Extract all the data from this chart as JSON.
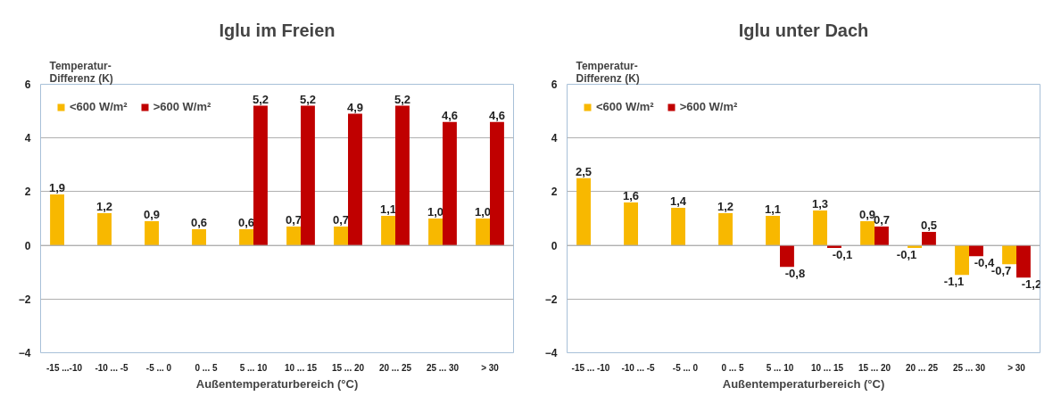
{
  "chart_data": [
    {
      "type": "bar",
      "title": "Iglu im Freien",
      "ylabel": "Temperatur-\nDifferenz (K)",
      "xlabel": "Außentemperaturbereich (°C)",
      "categories": [
        "-15 ...-10",
        "-10 ... -5",
        "-5 ... 0",
        "0 ... 5",
        "5 ... 10",
        "10 ... 15",
        "15 ... 20",
        "20 ... 25",
        "25 ... 30",
        "> 30"
      ],
      "series": [
        {
          "name": "<600 W/m²",
          "color": "#f8b800",
          "values": [
            1.9,
            1.2,
            0.9,
            0.6,
            0.6,
            0.7,
            0.7,
            1.1,
            1.0,
            1.0
          ],
          "value_labels": [
            "1,9",
            "1,2",
            "0,9",
            "0,6",
            "0,6",
            "0,7",
            "0,7",
            "1,1",
            "1,0",
            "1,0"
          ]
        },
        {
          "name": ">600 W/m²",
          "color": "#c00000",
          "values": [
            null,
            null,
            null,
            null,
            5.2,
            5.2,
            4.9,
            5.2,
            4.6,
            4.6
          ],
          "value_labels": [
            null,
            null,
            null,
            null,
            "5,2",
            "5,2",
            "4,9",
            "5,2",
            "4,6",
            "4,6"
          ]
        }
      ],
      "ylim": [
        -4,
        6
      ],
      "yticks": [
        -4,
        -2,
        0,
        2,
        4,
        6
      ],
      "grid": "y",
      "legend": "top left"
    },
    {
      "type": "bar",
      "title": "Iglu unter Dach",
      "ylabel": "Temperatur-\nDifferenz (K)",
      "xlabel": "Außentemperaturbereich (°C)",
      "categories": [
        "-15 ... -10",
        "-10 ... -5",
        "-5 ... 0",
        "0 ... 5",
        "5 ... 10",
        "10 ... 15",
        "15 ... 20",
        "20 ... 25",
        "25 ... 30",
        "> 30"
      ],
      "series": [
        {
          "name": "<600 W/m²",
          "color": "#f8b800",
          "values": [
            2.5,
            1.6,
            1.4,
            1.2,
            1.1,
            1.3,
            0.9,
            -0.1,
            -1.1,
            -0.7
          ],
          "value_labels": [
            "2,5",
            "1,6",
            "1,4",
            "1,2",
            "1,1",
            "1,3",
            "0,9",
            "-0,1",
            "-1,1",
            "-0,7"
          ]
        },
        {
          "name": ">600 W/m²",
          "color": "#c00000",
          "values": [
            null,
            null,
            null,
            null,
            -0.8,
            -0.1,
            0.7,
            0.5,
            -0.4,
            -1.2
          ],
          "value_labels": [
            null,
            null,
            null,
            null,
            "-0,8",
            "-0,1",
            "0,7",
            "0,5",
            "-0,4",
            "-1,2"
          ]
        }
      ],
      "ylim": [
        -4,
        6
      ],
      "yticks": [
        -4,
        -2,
        0,
        2,
        4,
        6
      ],
      "grid": "y",
      "legend": "top left"
    }
  ]
}
